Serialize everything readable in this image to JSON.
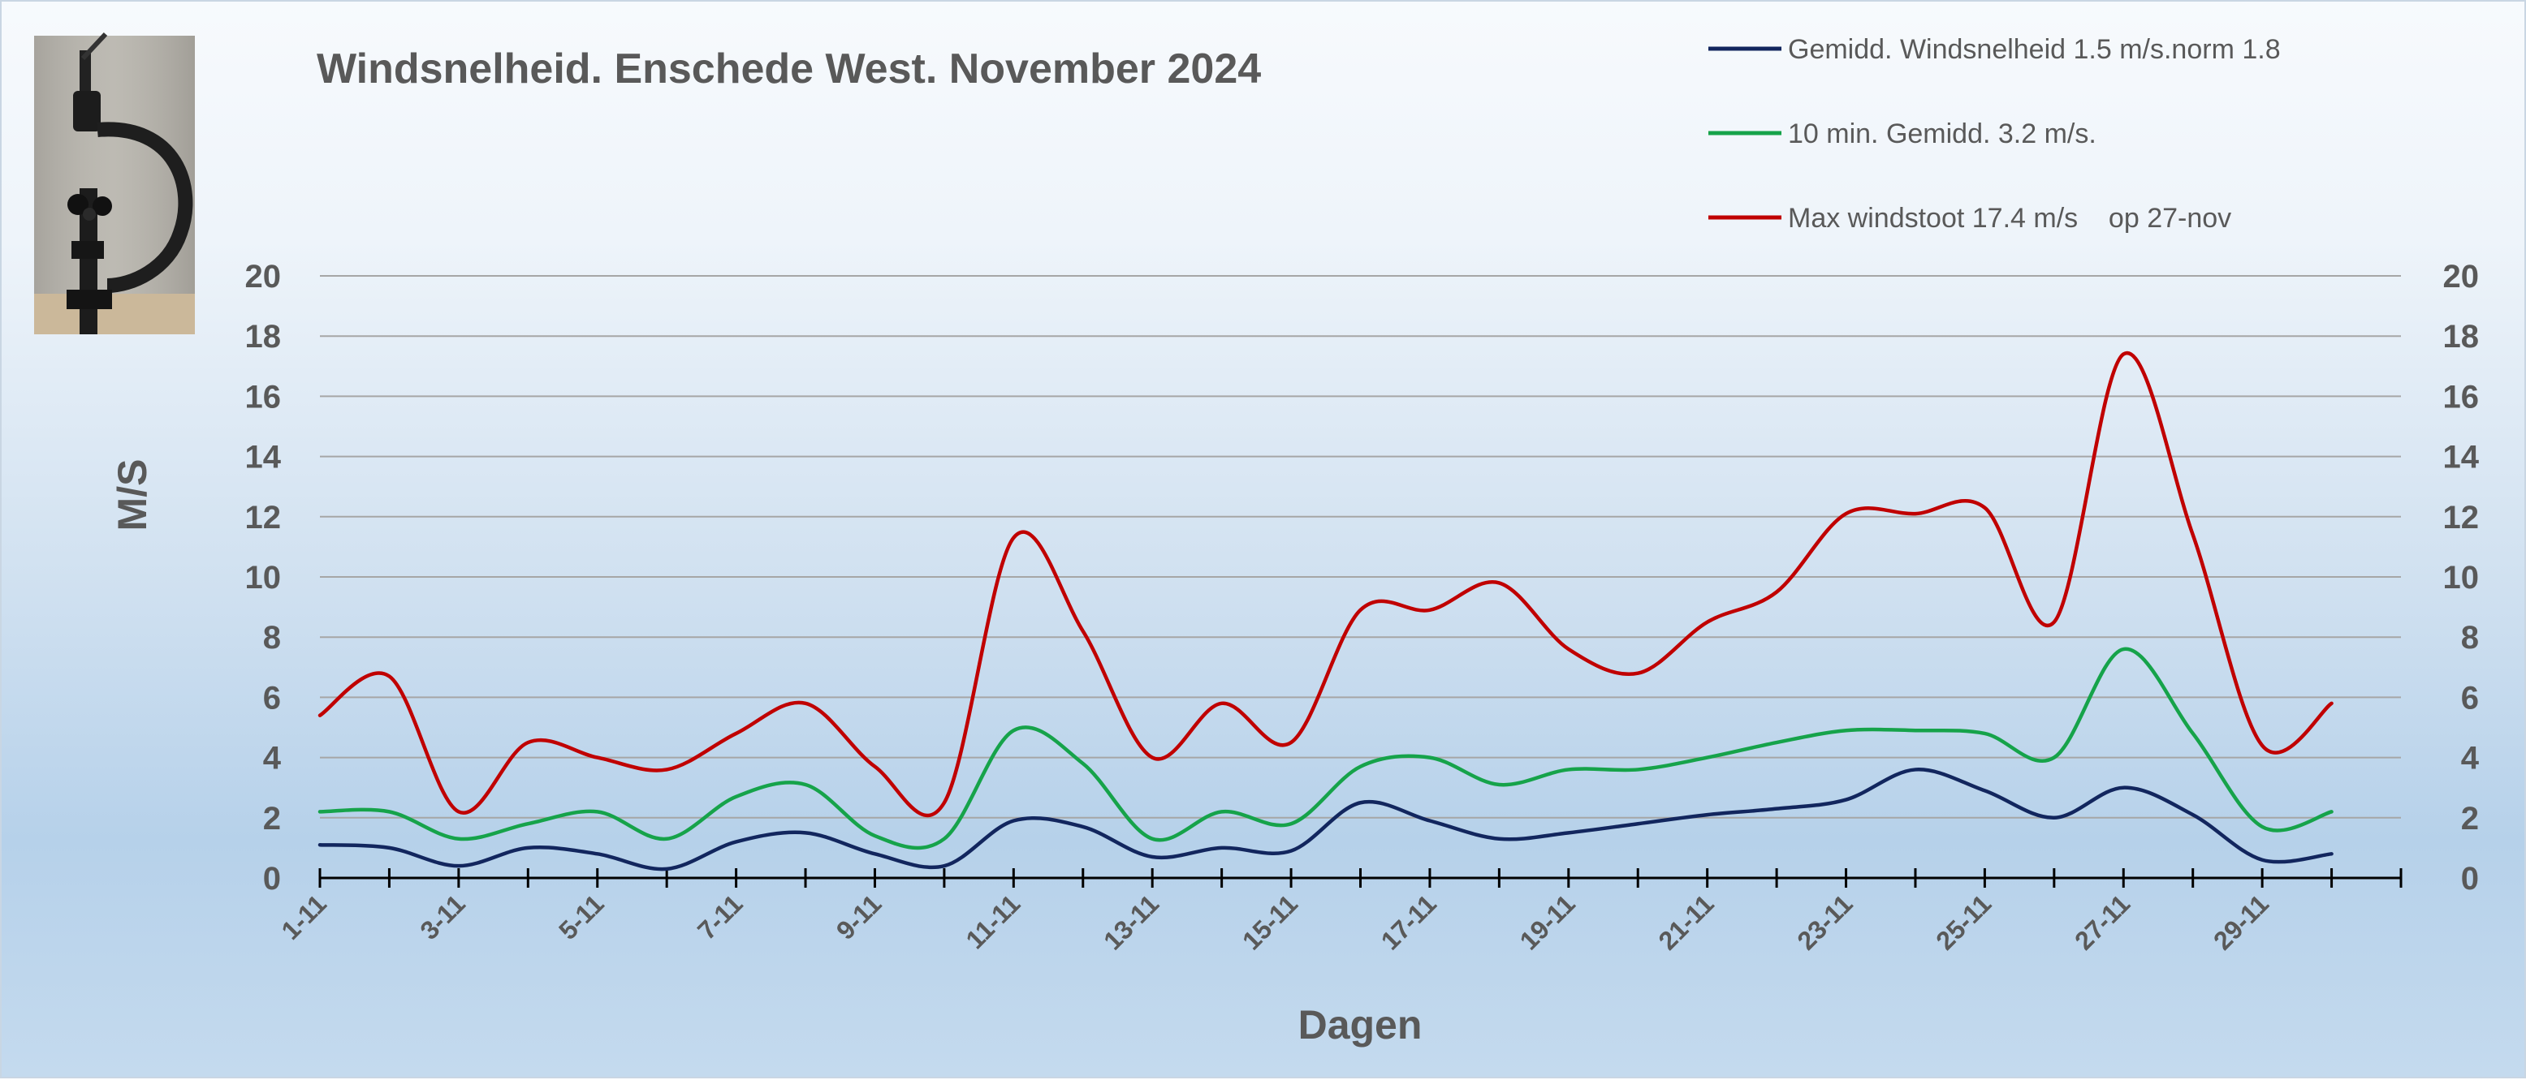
{
  "chart_data": {
    "type": "line",
    "title": "Windsnelheid. Enschede West. November 2024",
    "xlabel": "Dagen",
    "ylabel": "M/S",
    "ylim": [
      0,
      20
    ],
    "yticks": [
      0,
      2,
      4,
      6,
      8,
      10,
      12,
      14,
      16,
      18,
      20
    ],
    "y_axis_both_sides": true,
    "grid": true,
    "legend_position": "top-right",
    "x": [
      "1-11",
      "2-11",
      "3-11",
      "4-11",
      "5-11",
      "6-11",
      "7-11",
      "8-11",
      "9-11",
      "10-11",
      "11-11",
      "12-11",
      "13-11",
      "14-11",
      "15-11",
      "16-11",
      "17-11",
      "18-11",
      "19-11",
      "20-11",
      "21-11",
      "22-11",
      "23-11",
      "24-11",
      "25-11",
      "26-11",
      "27-11",
      "28-11",
      "29-11",
      "30-11"
    ],
    "xtick_labels": [
      "1-11",
      "3-11",
      "5-11",
      "7-11",
      "9-11",
      "11-11",
      "13-11",
      "15-11",
      "17-11",
      "19-11",
      "21-11",
      "23-11",
      "25-11",
      "27-11",
      "29-11"
    ],
    "series": [
      {
        "name": "Gemidd. Windsnelheid 1.5 m/s.norm 1.8",
        "color": "#12265e",
        "values": [
          1.1,
          1.0,
          0.4,
          1.0,
          0.8,
          0.3,
          1.2,
          1.5,
          0.8,
          0.4,
          1.9,
          1.7,
          0.7,
          1.0,
          0.9,
          2.5,
          1.9,
          1.3,
          1.5,
          1.8,
          2.1,
          2.3,
          2.6,
          3.6,
          2.9,
          2.0,
          3.0,
          2.1,
          0.6,
          0.8
        ]
      },
      {
        "name": "10 min. Gemidd. 3.2 m/s.",
        "color": "#16a34a",
        "values": [
          2.2,
          2.2,
          1.3,
          1.8,
          2.2,
          1.3,
          2.7,
          3.1,
          1.4,
          1.3,
          4.9,
          3.8,
          1.3,
          2.2,
          1.8,
          3.7,
          4.0,
          3.1,
          3.6,
          3.6,
          4.0,
          4.5,
          4.9,
          4.9,
          4.8,
          4.0,
          7.6,
          4.8,
          1.7,
          2.2
        ]
      },
      {
        "name": "Max windstoot 17.4 m/s    op 27-nov",
        "color": "#c00000",
        "values": [
          5.4,
          6.7,
          2.2,
          4.5,
          4.0,
          3.6,
          4.8,
          5.8,
          3.7,
          2.5,
          11.3,
          8.2,
          4.0,
          5.8,
          4.5,
          8.9,
          8.9,
          9.8,
          7.6,
          6.8,
          8.5,
          9.5,
          12.1,
          12.1,
          12.3,
          8.5,
          17.4,
          11.4,
          4.4,
          5.8
        ]
      }
    ]
  },
  "photo": {
    "icon": "anemometer-photo"
  }
}
